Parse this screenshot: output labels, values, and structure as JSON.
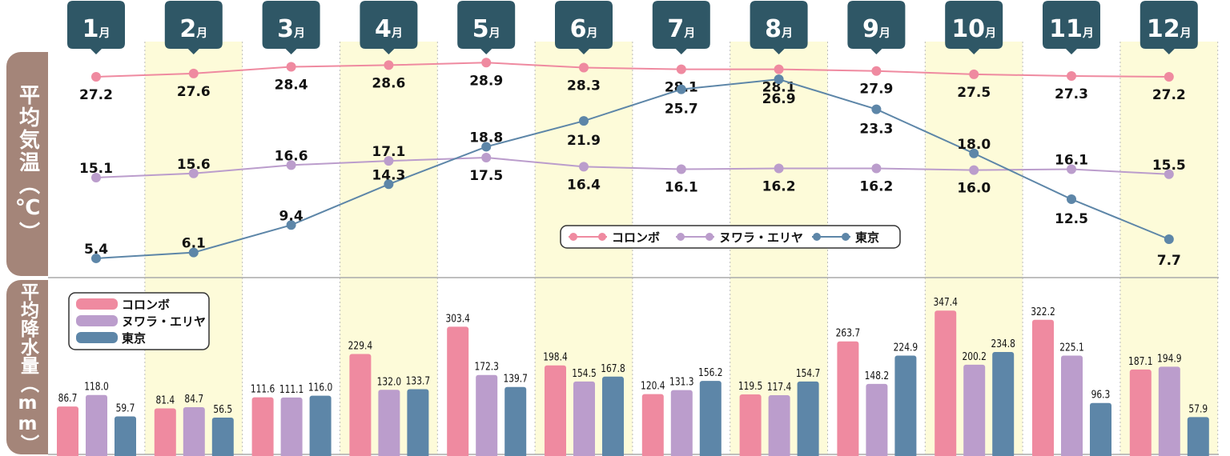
{
  "chart_data": [
    {
      "type": "line",
      "ylabel": "平均気温（℃）",
      "categories": [
        "1",
        "2",
        "3",
        "4",
        "5",
        "6",
        "7",
        "8",
        "9",
        "10",
        "11",
        "12"
      ],
      "month_suffix": "月",
      "series": [
        {
          "name": "コロンボ",
          "color": "#ef8aa0",
          "values": [
            27.2,
            27.6,
            28.4,
            28.6,
            28.9,
            28.3,
            28.1,
            28.1,
            27.9,
            27.5,
            27.3,
            27.2
          ]
        },
        {
          "name": "ヌワラ・エリヤ",
          "color": "#bb9dcc",
          "values": [
            15.1,
            15.6,
            16.6,
            17.1,
            17.5,
            16.4,
            16.1,
            16.2,
            16.2,
            16.0,
            16.1,
            15.5
          ]
        },
        {
          "name": "東京",
          "color": "#5d86a8",
          "values": [
            5.4,
            6.1,
            9.4,
            14.3,
            18.8,
            21.9,
            25.7,
            26.9,
            23.3,
            18.0,
            12.5,
            7.7
          ]
        }
      ],
      "legend": "center-right"
    },
    {
      "type": "bar",
      "ylabel": "平均降水量（mm）",
      "categories": [
        "1",
        "2",
        "3",
        "4",
        "5",
        "6",
        "7",
        "8",
        "9",
        "10",
        "11",
        "12"
      ],
      "series": [
        {
          "name": "コロンボ",
          "color": "#ef8aa0",
          "values": [
            86.7,
            81.4,
            111.6,
            229.4,
            303.4,
            198.4,
            120.4,
            119.5,
            263.7,
            347.4,
            322.2,
            187.1
          ]
        },
        {
          "name": "ヌワラ・エリヤ",
          "color": "#bb9dcc",
          "values": [
            118.0,
            84.7,
            111.1,
            132.0,
            172.3,
            154.5,
            131.3,
            117.4,
            148.2,
            200.2,
            225.1,
            194.9
          ]
        },
        {
          "name": "東京",
          "color": "#5d86a8",
          "values": [
            59.7,
            56.5,
            116.0,
            133.7,
            139.7,
            167.8,
            156.2,
            154.7,
            224.9,
            234.8,
            96.3,
            57.9
          ]
        }
      ],
      "legend": "top-left"
    }
  ],
  "colors": {
    "tab": "#2f5766",
    "highlight": "#fdfbd9",
    "axisbox": "#a48579"
  }
}
